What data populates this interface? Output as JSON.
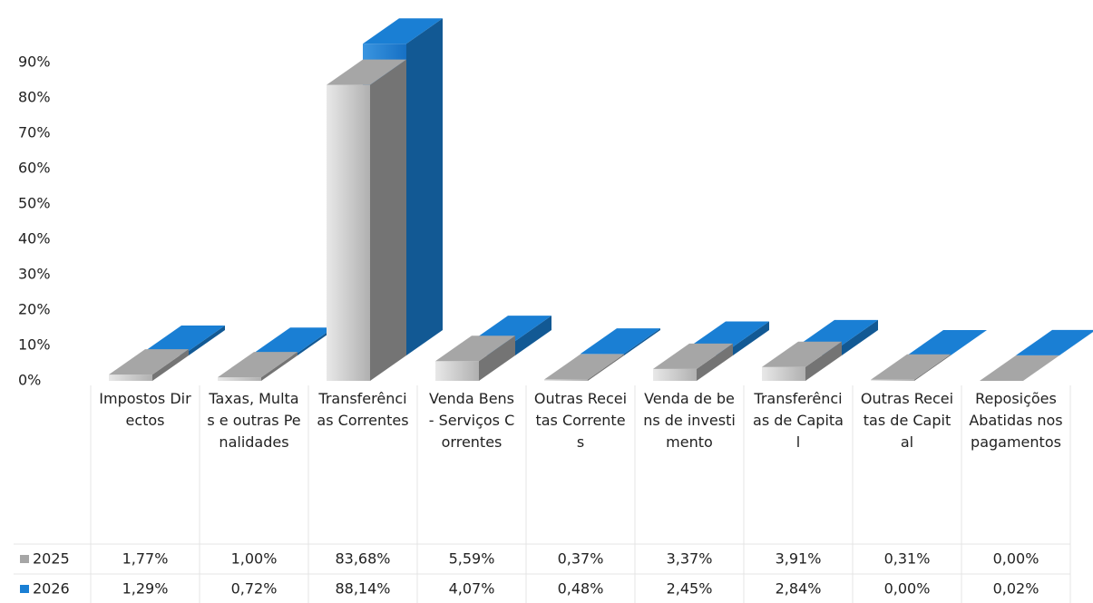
{
  "chart_data": {
    "type": "bar3d",
    "categories": [
      "Impostos Directos",
      "Taxas, Multas e outras Penalidades",
      "Transferências Correntes",
      "Venda Bens - Serviços Correntes",
      "Outras Receitas Correntes",
      "Venda de bens de investimento",
      "Transferências de Capital",
      "Outras Receitas de Capital",
      "Reposições Abatidas nos pagamentos"
    ],
    "series": [
      {
        "name": "2025",
        "color": "#a6a6a6",
        "values": [
          1.77,
          1.0,
          83.68,
          5.59,
          0.37,
          3.37,
          3.91,
          0.31,
          0.0
        ],
        "value_labels": [
          "1,77%",
          "1,00%",
          "83,68%",
          "5,59%",
          "0,37%",
          "3,37%",
          "3,91%",
          "0,31%",
          "0,00%"
        ]
      },
      {
        "name": "2026",
        "color": "#1a7fd4",
        "values": [
          1.29,
          0.72,
          88.14,
          4.07,
          0.48,
          2.45,
          2.84,
          0.0,
          0.02
        ],
        "value_labels": [
          "1,29%",
          "0,72%",
          "88,14%",
          "4,07%",
          "0,48%",
          "2,45%",
          "2,84%",
          "0,00%",
          "0,02%"
        ]
      }
    ],
    "ylim": [
      0,
      100
    ],
    "yticks": [
      {
        "value": 0,
        "label": "0%"
      },
      {
        "value": 10,
        "label": "10%"
      },
      {
        "value": 20,
        "label": "20%"
      },
      {
        "value": 30,
        "label": "30%"
      },
      {
        "value": 40,
        "label": "40%"
      },
      {
        "value": 50,
        "label": "50%"
      },
      {
        "value": 60,
        "label": "60%"
      },
      {
        "value": 70,
        "label": "70%"
      },
      {
        "value": 80,
        "label": "80%"
      },
      {
        "value": 90,
        "label": "90%"
      }
    ]
  }
}
